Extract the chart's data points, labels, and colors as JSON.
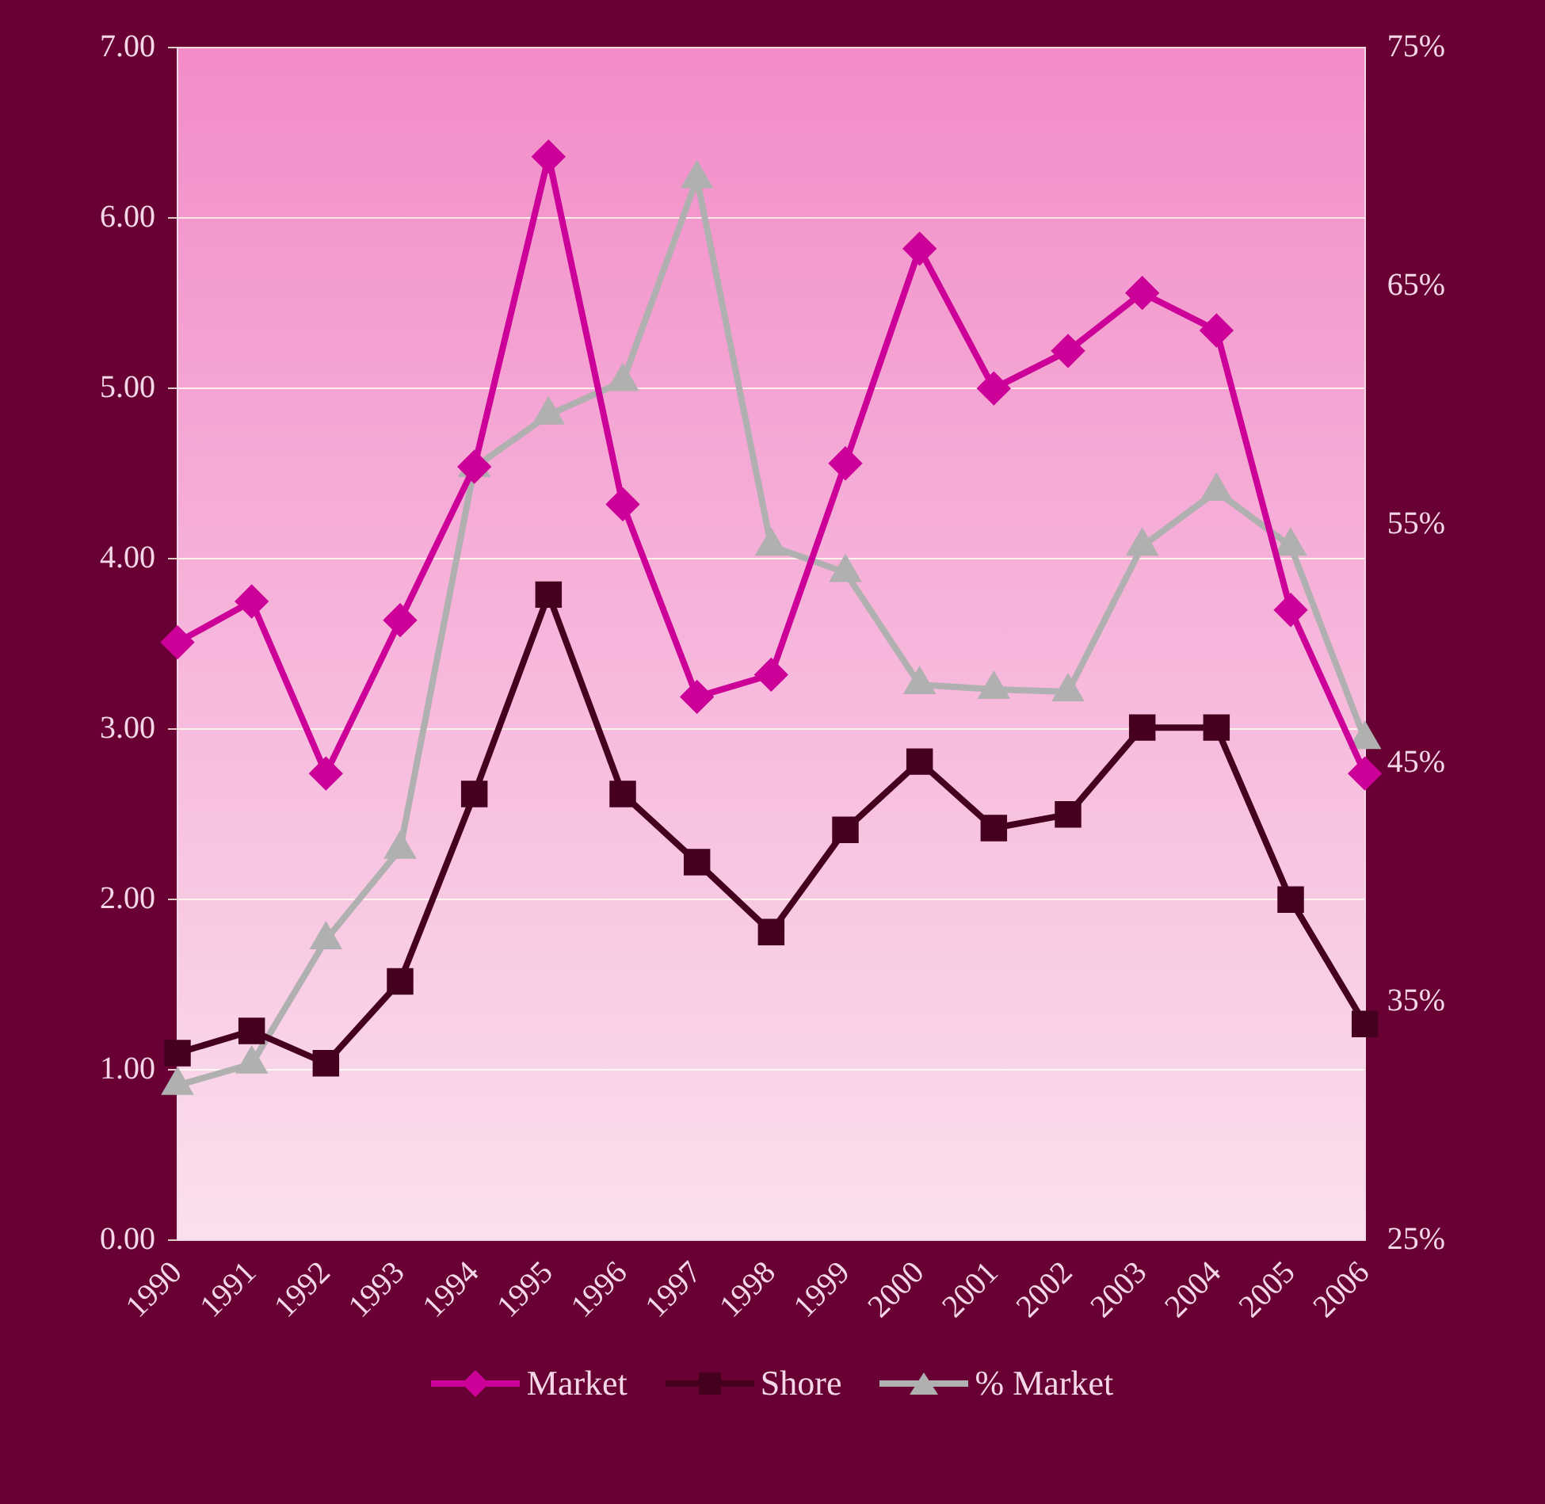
{
  "chart_data": {
    "type": "line",
    "categories": [
      "1990",
      "1991",
      "1992",
      "1993",
      "1994",
      "1995",
      "1996",
      "1997",
      "1998",
      "1999",
      "2000",
      "2001",
      "2002",
      "2003",
      "2004",
      "2005",
      "2006"
    ],
    "series": [
      {
        "name": "Market",
        "color": "#cc0099",
        "marker": "diamond",
        "values": [
          3.51,
          3.75,
          2.74,
          3.64,
          4.54,
          6.36,
          4.32,
          3.19,
          3.32,
          4.56,
          5.82,
          5.0,
          5.22,
          5.56,
          5.34,
          3.7,
          2.74
        ]
      },
      {
        "name": "Shore",
        "color": "#45001f",
        "marker": "square",
        "values": [
          1.1,
          1.23,
          1.04,
          1.52,
          2.62,
          3.79,
          2.62,
          2.22,
          1.81,
          2.41,
          2.81,
          2.42,
          2.5,
          3.01,
          3.01,
          2.0,
          1.27
        ]
      },
      {
        "name": "% Market",
        "color": "#b0b0b0",
        "marker": "triangle",
        "axis": "y2",
        "values": [
          31.5,
          32.4,
          37.6,
          41.4,
          57.4,
          59.6,
          61.0,
          69.5,
          54.1,
          53.0,
          48.3,
          48.1,
          48.0,
          54.1,
          56.4,
          54.1,
          46.0
        ]
      }
    ],
    "ylim": [
      0,
      7
    ],
    "yticks": [
      {
        "value": 0,
        "label": "0.00"
      },
      {
        "value": 1,
        "label": "1.00"
      },
      {
        "value": 2,
        "label": "2.00"
      },
      {
        "value": 3,
        "label": "3.00"
      },
      {
        "value": 4,
        "label": "4.00"
      },
      {
        "value": 5,
        "label": "5.00"
      },
      {
        "value": 6,
        "label": "6.00"
      },
      {
        "value": 7,
        "label": "7.00"
      }
    ],
    "y2lim": [
      25,
      75
    ],
    "y2ticks": [
      {
        "value": 25,
        "label": "25%"
      },
      {
        "value": 35,
        "label": "35%"
      },
      {
        "value": 45,
        "label": "45%"
      },
      {
        "value": 55,
        "label": "55%"
      },
      {
        "value": 65,
        "label": "65%"
      },
      {
        "value": 75,
        "label": "75%"
      }
    ],
    "grid": "y",
    "legend": "bottom",
    "line_style": "solid"
  }
}
